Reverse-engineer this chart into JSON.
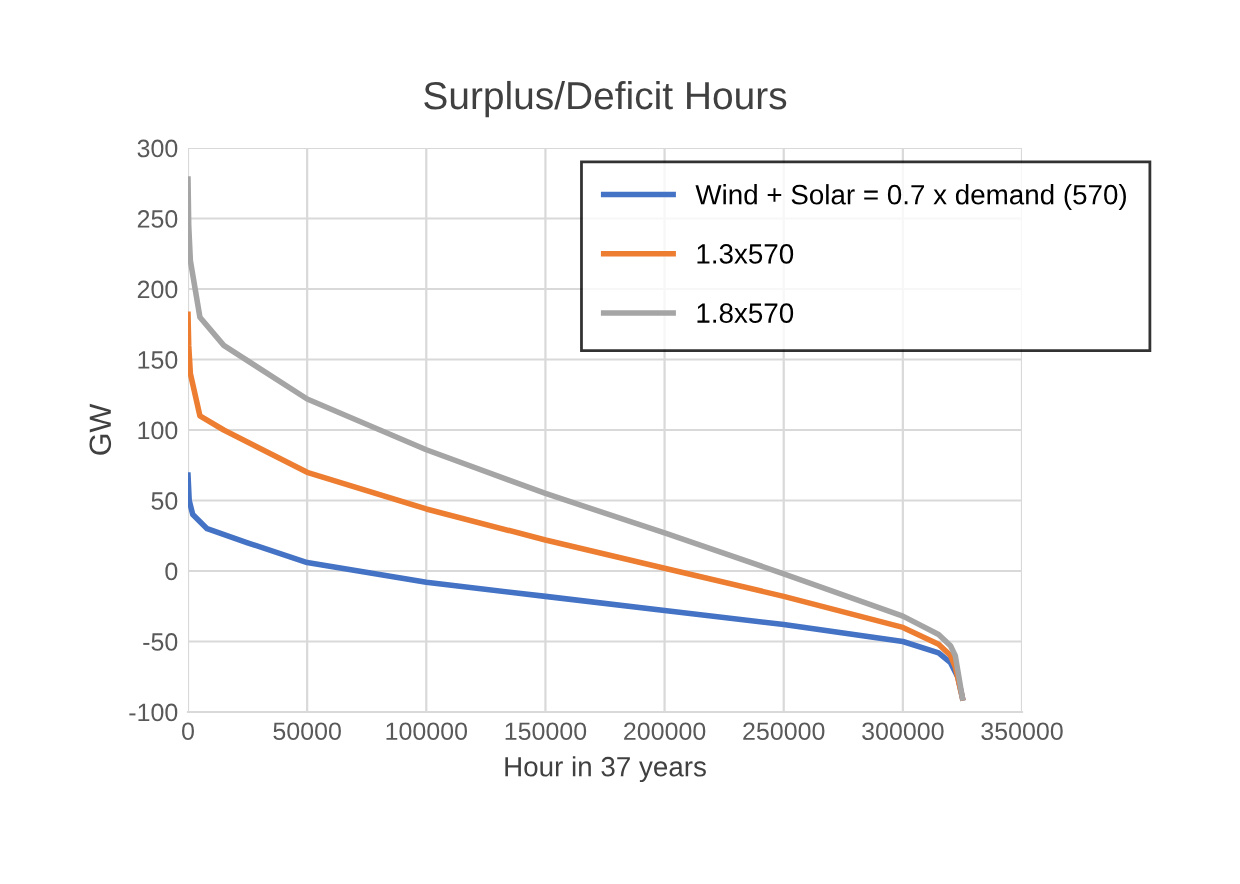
{
  "chart_data": {
    "type": "line",
    "title": "Surplus/Deficit Hours",
    "xlabel": "Hour in 37 years",
    "ylabel": "GW",
    "xlim": [
      0,
      350000
    ],
    "xticks": [
      0,
      50000,
      100000,
      150000,
      200000,
      250000,
      300000,
      350000
    ],
    "ylim": [
      -100,
      300
    ],
    "yticks": [
      -100,
      -50,
      0,
      50,
      100,
      150,
      200,
      250,
      300
    ],
    "grid": true,
    "legend": "top right",
    "marker": "none",
    "line_style": "solid",
    "series": [
      {
        "name": "Wind + Solar = 0.7 x demand (570)",
        "color": "#4472c4",
        "x": [
          0,
          500,
          2000,
          8000,
          25000,
          50000,
          100000,
          150000,
          200000,
          250000,
          300000,
          315000,
          320000,
          323000,
          325000
        ],
        "values": [
          68,
          50,
          40,
          30,
          20,
          6,
          -8,
          -18,
          -28,
          -38,
          -50,
          -58,
          -65,
          -75,
          -90
        ]
      },
      {
        "name": "1.3x570",
        "color": "#ed7d31",
        "x": [
          0,
          300,
          1000,
          5000,
          15000,
          50000,
          100000,
          150000,
          200000,
          250000,
          300000,
          315000,
          320000,
          322000,
          325000
        ],
        "values": [
          182,
          160,
          140,
          110,
          100,
          70,
          44,
          22,
          2,
          -18,
          -40,
          -52,
          -60,
          -68,
          -90
        ]
      },
      {
        "name": "1.8x570",
        "color": "#a5a5a5",
        "x": [
          0,
          300,
          1000,
          5000,
          15000,
          50000,
          100000,
          150000,
          200000,
          250000,
          300000,
          315000,
          320000,
          322000,
          325000
        ],
        "values": [
          278,
          245,
          220,
          180,
          160,
          122,
          86,
          55,
          27,
          -2,
          -32,
          -45,
          -53,
          -60,
          -90
        ]
      }
    ]
  }
}
